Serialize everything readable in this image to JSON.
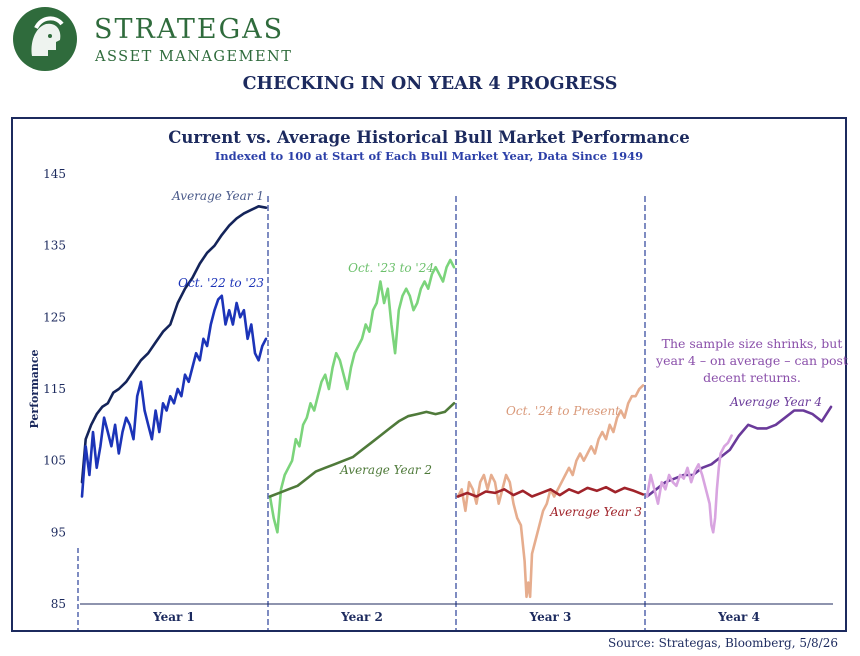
{
  "brand": {
    "name": "STRATEGAS",
    "subtitle": "ASSET MANAGEMENT",
    "logo_icon": "spartan-helmet-logo-icon",
    "color": "#2f6b3c"
  },
  "page_title": "CHECKING IN ON YEAR 4 PROGRESS",
  "source": "Source: Strategas, Bloomberg, 5/8/26",
  "chart_data": {
    "type": "line",
    "title": "Current vs. Average Historical Bull Market Performance",
    "subtitle": "Indexed to 100 at Start of Each Bull Market Year, Data Since 1949",
    "ylabel": "Performance",
    "ylim": [
      85,
      145
    ],
    "yticks": [
      85,
      95,
      105,
      115,
      125,
      135,
      145
    ],
    "x_segments": [
      "Year 1",
      "Year 2",
      "Year 3",
      "Year 4"
    ],
    "grid": false,
    "series": [
      {
        "name": "Average Year 1",
        "segment": 0,
        "color": "#14245a",
        "points": [
          [
            0,
            102
          ],
          [
            0.02,
            108
          ],
          [
            0.05,
            110
          ],
          [
            0.08,
            111.5
          ],
          [
            0.11,
            112.5
          ],
          [
            0.14,
            113
          ],
          [
            0.17,
            114.5
          ],
          [
            0.2,
            115
          ],
          [
            0.24,
            116
          ],
          [
            0.28,
            117.5
          ],
          [
            0.32,
            119
          ],
          [
            0.36,
            120
          ],
          [
            0.4,
            121.5
          ],
          [
            0.44,
            123
          ],
          [
            0.48,
            124
          ],
          [
            0.52,
            127
          ],
          [
            0.56,
            129
          ],
          [
            0.6,
            130.5
          ],
          [
            0.64,
            132.5
          ],
          [
            0.68,
            134
          ],
          [
            0.72,
            135
          ],
          [
            0.76,
            136.5
          ],
          [
            0.8,
            137.8
          ],
          [
            0.84,
            138.8
          ],
          [
            0.88,
            139.5
          ],
          [
            0.92,
            140
          ],
          [
            0.96,
            140.5
          ],
          [
            1,
            140.3
          ]
        ]
      },
      {
        "name": "Oct. '22 to '23",
        "segment": 0,
        "color": "#1c34b8",
        "points": [
          [
            0,
            100
          ],
          [
            0.02,
            107
          ],
          [
            0.04,
            103
          ],
          [
            0.06,
            109
          ],
          [
            0.08,
            104
          ],
          [
            0.1,
            107
          ],
          [
            0.12,
            111
          ],
          [
            0.14,
            109
          ],
          [
            0.16,
            107
          ],
          [
            0.18,
            110
          ],
          [
            0.2,
            106
          ],
          [
            0.22,
            109
          ],
          [
            0.24,
            111
          ],
          [
            0.26,
            110
          ],
          [
            0.28,
            108
          ],
          [
            0.3,
            114
          ],
          [
            0.32,
            116
          ],
          [
            0.34,
            112
          ],
          [
            0.36,
            110
          ],
          [
            0.38,
            108
          ],
          [
            0.4,
            112
          ],
          [
            0.42,
            109
          ],
          [
            0.44,
            113
          ],
          [
            0.46,
            112
          ],
          [
            0.48,
            114
          ],
          [
            0.5,
            113
          ],
          [
            0.52,
            115
          ],
          [
            0.54,
            114
          ],
          [
            0.56,
            117
          ],
          [
            0.58,
            116
          ],
          [
            0.6,
            118
          ],
          [
            0.62,
            120
          ],
          [
            0.64,
            119
          ],
          [
            0.66,
            122
          ],
          [
            0.68,
            121
          ],
          [
            0.7,
            124
          ],
          [
            0.72,
            126
          ],
          [
            0.74,
            127.5
          ],
          [
            0.76,
            128
          ],
          [
            0.78,
            124
          ],
          [
            0.8,
            126
          ],
          [
            0.82,
            124
          ],
          [
            0.84,
            127
          ],
          [
            0.86,
            125
          ],
          [
            0.88,
            126
          ],
          [
            0.9,
            122
          ],
          [
            0.92,
            124
          ],
          [
            0.94,
            120
          ],
          [
            0.96,
            119
          ],
          [
            0.98,
            121
          ],
          [
            1,
            122
          ]
        ]
      },
      {
        "name": "Oct. '23 to '24",
        "segment": 1,
        "color": "#7bd47b",
        "points": [
          [
            0,
            100
          ],
          [
            0.02,
            97
          ],
          [
            0.04,
            95
          ],
          [
            0.06,
            101
          ],
          [
            0.08,
            103
          ],
          [
            0.1,
            104
          ],
          [
            0.12,
            105
          ],
          [
            0.14,
            108
          ],
          [
            0.16,
            107
          ],
          [
            0.18,
            110
          ],
          [
            0.2,
            111
          ],
          [
            0.22,
            113
          ],
          [
            0.24,
            112
          ],
          [
            0.26,
            114
          ],
          [
            0.28,
            116
          ],
          [
            0.3,
            117
          ],
          [
            0.32,
            115
          ],
          [
            0.34,
            118
          ],
          [
            0.36,
            120
          ],
          [
            0.38,
            119
          ],
          [
            0.4,
            117
          ],
          [
            0.42,
            115
          ],
          [
            0.44,
            118
          ],
          [
            0.46,
            120
          ],
          [
            0.48,
            121
          ],
          [
            0.5,
            122
          ],
          [
            0.52,
            124
          ],
          [
            0.54,
            123
          ],
          [
            0.56,
            126
          ],
          [
            0.58,
            127
          ],
          [
            0.6,
            130
          ],
          [
            0.62,
            127
          ],
          [
            0.64,
            129
          ],
          [
            0.66,
            124
          ],
          [
            0.68,
            120
          ],
          [
            0.7,
            126
          ],
          [
            0.72,
            128
          ],
          [
            0.74,
            129
          ],
          [
            0.76,
            128
          ],
          [
            0.78,
            126
          ],
          [
            0.8,
            127
          ],
          [
            0.82,
            129
          ],
          [
            0.84,
            130
          ],
          [
            0.86,
            129
          ],
          [
            0.88,
            131
          ],
          [
            0.9,
            132
          ],
          [
            0.92,
            131
          ],
          [
            0.94,
            130
          ],
          [
            0.96,
            132
          ],
          [
            0.98,
            133
          ],
          [
            1,
            132
          ]
        ]
      },
      {
        "name": "Average Year 2",
        "segment": 1,
        "color": "#4f7a3a",
        "points": [
          [
            0,
            100
          ],
          [
            0.05,
            100.5
          ],
          [
            0.1,
            101
          ],
          [
            0.15,
            101.5
          ],
          [
            0.2,
            102.5
          ],
          [
            0.25,
            103.5
          ],
          [
            0.3,
            104
          ],
          [
            0.35,
            104.5
          ],
          [
            0.4,
            105
          ],
          [
            0.45,
            105.5
          ],
          [
            0.5,
            106.5
          ],
          [
            0.55,
            107.5
          ],
          [
            0.6,
            108.5
          ],
          [
            0.65,
            109.5
          ],
          [
            0.7,
            110.5
          ],
          [
            0.75,
            111.2
          ],
          [
            0.8,
            111.5
          ],
          [
            0.85,
            111.8
          ],
          [
            0.9,
            111.5
          ],
          [
            0.95,
            111.8
          ],
          [
            1,
            113
          ]
        ]
      },
      {
        "name": "Oct. '24 to Present",
        "segment": 2,
        "color": "#e6ad8e",
        "points": [
          [
            0,
            100
          ],
          [
            0.02,
            101
          ],
          [
            0.04,
            98
          ],
          [
            0.06,
            102
          ],
          [
            0.08,
            101
          ],
          [
            0.1,
            99
          ],
          [
            0.12,
            102
          ],
          [
            0.14,
            103
          ],
          [
            0.16,
            101
          ],
          [
            0.18,
            103
          ],
          [
            0.2,
            102
          ],
          [
            0.22,
            99
          ],
          [
            0.24,
            101
          ],
          [
            0.26,
            103
          ],
          [
            0.28,
            102
          ],
          [
            0.3,
            99
          ],
          [
            0.32,
            97
          ],
          [
            0.34,
            96
          ],
          [
            0.36,
            91
          ],
          [
            0.37,
            86
          ],
          [
            0.38,
            88
          ],
          [
            0.39,
            86
          ],
          [
            0.4,
            92
          ],
          [
            0.42,
            94
          ],
          [
            0.44,
            96
          ],
          [
            0.46,
            98
          ],
          [
            0.48,
            99
          ],
          [
            0.5,
            101
          ],
          [
            0.52,
            100
          ],
          [
            0.54,
            101
          ],
          [
            0.56,
            102
          ],
          [
            0.58,
            103
          ],
          [
            0.6,
            104
          ],
          [
            0.62,
            103
          ],
          [
            0.64,
            105
          ],
          [
            0.66,
            106
          ],
          [
            0.68,
            105
          ],
          [
            0.7,
            106
          ],
          [
            0.72,
            107
          ],
          [
            0.74,
            106
          ],
          [
            0.76,
            108
          ],
          [
            0.78,
            109
          ],
          [
            0.8,
            108
          ],
          [
            0.82,
            110
          ],
          [
            0.84,
            109
          ],
          [
            0.86,
            111
          ],
          [
            0.88,
            112
          ],
          [
            0.9,
            111
          ],
          [
            0.92,
            113
          ],
          [
            0.94,
            114
          ],
          [
            0.96,
            114
          ],
          [
            0.98,
            115
          ],
          [
            1,
            115.5
          ]
        ]
      },
      {
        "name": "Average Year 3",
        "segment": 2,
        "color": "#a0232a",
        "points": [
          [
            0,
            100
          ],
          [
            0.05,
            100.5
          ],
          [
            0.1,
            100
          ],
          [
            0.15,
            100.7
          ],
          [
            0.2,
            100.5
          ],
          [
            0.25,
            101
          ],
          [
            0.3,
            100.2
          ],
          [
            0.35,
            100.8
          ],
          [
            0.4,
            100
          ],
          [
            0.45,
            100.5
          ],
          [
            0.5,
            101
          ],
          [
            0.55,
            100.2
          ],
          [
            0.6,
            101
          ],
          [
            0.65,
            100.5
          ],
          [
            0.7,
            101.2
          ],
          [
            0.75,
            100.8
          ],
          [
            0.8,
            101.3
          ],
          [
            0.85,
            100.6
          ],
          [
            0.9,
            101.2
          ],
          [
            0.95,
            100.8
          ],
          [
            1,
            100.3
          ]
        ]
      },
      {
        "name": "Average Year 4",
        "segment": 3,
        "color": "#6a3a9a",
        "points": [
          [
            0,
            100
          ],
          [
            0.05,
            101
          ],
          [
            0.1,
            102
          ],
          [
            0.15,
            102.5
          ],
          [
            0.2,
            103
          ],
          [
            0.25,
            103
          ],
          [
            0.3,
            104
          ],
          [
            0.35,
            104.5
          ],
          [
            0.4,
            105.5
          ],
          [
            0.45,
            106.5
          ],
          [
            0.5,
            108.5
          ],
          [
            0.55,
            110
          ],
          [
            0.6,
            109.5
          ],
          [
            0.65,
            109.5
          ],
          [
            0.7,
            110
          ],
          [
            0.75,
            111
          ],
          [
            0.8,
            112
          ],
          [
            0.85,
            112
          ],
          [
            0.9,
            111.5
          ],
          [
            0.95,
            110.5
          ],
          [
            1,
            112.5
          ]
        ]
      },
      {
        "name": "",
        "segment": 3,
        "color": "#d8a4e0",
        "points": [
          [
            0,
            100
          ],
          [
            0.02,
            103
          ],
          [
            0.04,
            101
          ],
          [
            0.06,
            99
          ],
          [
            0.08,
            102
          ],
          [
            0.1,
            101
          ],
          [
            0.12,
            103
          ],
          [
            0.14,
            102
          ],
          [
            0.16,
            101.5
          ],
          [
            0.18,
            103
          ],
          [
            0.2,
            102.5
          ],
          [
            0.22,
            104
          ],
          [
            0.24,
            102
          ],
          [
            0.26,
            103.5
          ],
          [
            0.28,
            104.5
          ],
          [
            0.3,
            103
          ],
          [
            0.32,
            101
          ],
          [
            0.34,
            99
          ],
          [
            0.35,
            96
          ],
          [
            0.36,
            95
          ],
          [
            0.37,
            97
          ],
          [
            0.38,
            101
          ],
          [
            0.39,
            104
          ],
          [
            0.4,
            106
          ],
          [
            0.42,
            107
          ],
          [
            0.44,
            107.5
          ],
          [
            0.46,
            108.5
          ]
        ]
      }
    ],
    "annotations": [
      {
        "text": "Average Year 1",
        "color": "#4a5a8a"
      },
      {
        "text": "Oct. '22 to '23",
        "color": "#1c34b8"
      },
      {
        "text": "Oct. '23 to '24",
        "color": "#6cc06c"
      },
      {
        "text": "Average Year 2",
        "color": "#4f7a3a"
      },
      {
        "text": "Oct. '24 to Present",
        "color": "#d9997a"
      },
      {
        "text": "Average Year 3",
        "color": "#a0232a"
      },
      {
        "text": "Average Year 4",
        "color": "#6a3a9a"
      },
      {
        "text": "The sample size shrinks, but",
        "color": "#8a4faa"
      },
      {
        "text": "year 4 – on average – can post",
        "color": "#8a4faa"
      },
      {
        "text": "decent returns.",
        "color": "#8a4faa"
      }
    ],
    "divider_color": "#3a4fa0",
    "axis_color": "#1c2a5e"
  }
}
